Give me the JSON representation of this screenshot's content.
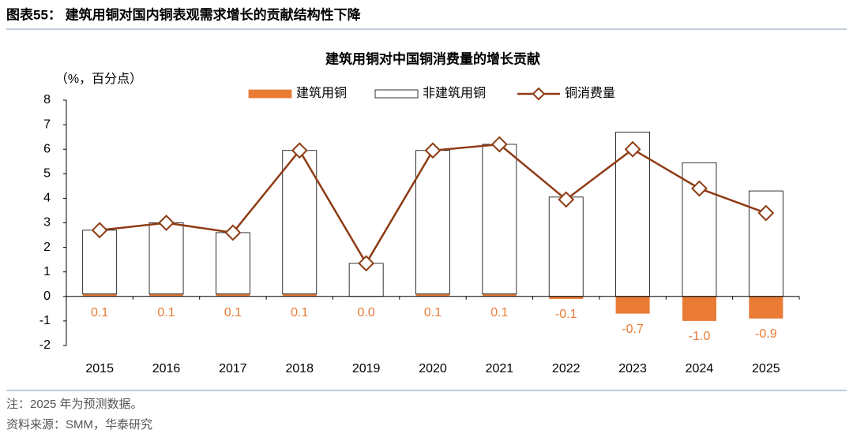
{
  "figure": {
    "title": "图表55： 建筑用铜对国内铜表观需求增长的贡献结构性下降",
    "note": "注：2025 年为预测数据。",
    "source": "资料来源：SMM，华泰研究"
  },
  "chart_data": {
    "type": "bar",
    "title": "建筑用铜对中国铜消费量的增长贡献",
    "y_label": "（%，百分点）",
    "categories": [
      "2015",
      "2016",
      "2017",
      "2018",
      "2019",
      "2020",
      "2021",
      "2022",
      "2023",
      "2024",
      "2025"
    ],
    "series": [
      {
        "name": "建筑用铜",
        "color": "#e97b35",
        "type": "bar",
        "values": [
          0.1,
          0.1,
          0.1,
          0.1,
          0.0,
          0.1,
          0.1,
          -0.1,
          -0.7,
          -1.0,
          -0.9
        ],
        "value_labels": [
          "0.1",
          "0.1",
          "0.1",
          "0.1",
          "0.0",
          "0.1",
          "0.1",
          "-0.1",
          "-0.7",
          "-1.0",
          "-0.9"
        ]
      },
      {
        "name": "非建筑用铜",
        "color": "#ffffff",
        "type": "bar",
        "values": [
          2.6,
          2.9,
          2.5,
          5.85,
          1.35,
          5.85,
          6.1,
          4.05,
          6.7,
          5.45,
          4.3
        ]
      },
      {
        "name": "铜消费量",
        "color": "#8e3b14",
        "type": "line",
        "values": [
          2.7,
          3.0,
          2.6,
          5.95,
          1.35,
          5.95,
          6.2,
          3.95,
          6.0,
          4.4,
          3.4
        ]
      }
    ],
    "ylim": [
      -2,
      8
    ],
    "yticks": [
      -2,
      -1,
      0,
      1,
      2,
      3,
      4,
      5,
      6,
      7,
      8
    ],
    "legend": "top"
  }
}
